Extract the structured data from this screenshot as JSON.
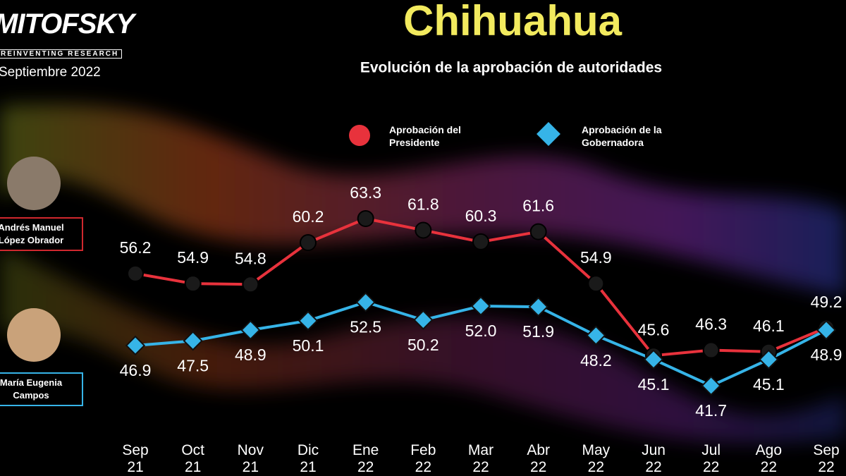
{
  "branding": {
    "logo": "MITOFSKY",
    "tagline": "REINVENTING RESEARCH",
    "date": "Septiembre 2022"
  },
  "people": [
    {
      "name": "Andrés Manuel López Obrador"
    },
    {
      "name": "María Eugenia Campos"
    }
  ],
  "chart_data": {
    "type": "line",
    "title": "Chihuahua",
    "subtitle": "Evolución de la aprobación de autoridades",
    "categories": [
      "Sep 21",
      "Oct 21",
      "Nov 21",
      "Dic 21",
      "Ene 22",
      "Feb 22",
      "Mar 22",
      "Abr 22",
      "May 22",
      "Jun 22",
      "Jul 22",
      "Ago 22",
      "Sep 22"
    ],
    "series": [
      {
        "name": "Aprobación del Presidente",
        "color": "#e8323c",
        "marker": "circle",
        "values": [
          56.2,
          54.9,
          54.8,
          60.2,
          63.3,
          61.8,
          60.3,
          61.6,
          54.9,
          45.6,
          46.3,
          46.1,
          49.2
        ]
      },
      {
        "name": "Aprobación de la Gobernadora",
        "color": "#36b4e8",
        "marker": "diamond",
        "values": [
          46.9,
          47.5,
          48.9,
          50.1,
          52.5,
          50.2,
          52.0,
          51.9,
          48.2,
          45.1,
          41.7,
          45.1,
          48.9
        ],
        "value_labels": [
          "46.9",
          "47.5",
          "48.9",
          "50.1",
          "52.5",
          "50.2",
          "52.0",
          "51.9",
          "48.2",
          "45.1",
          "41.7",
          "45.1",
          "48.9"
        ]
      }
    ]
  }
}
